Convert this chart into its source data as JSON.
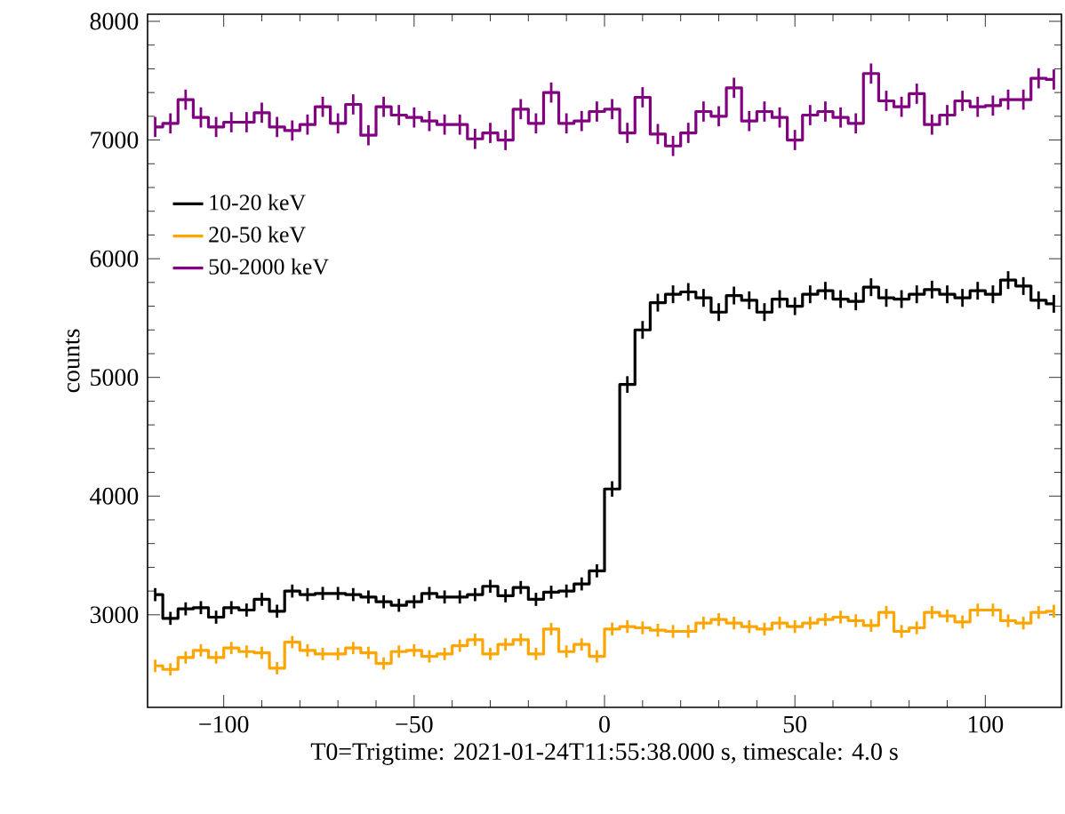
{
  "chart_data": {
    "type": "step",
    "xlabel": "T0=Trigtime: 2021-01-24T11:55:38.000 s, timescale: 4.0 s",
    "ylabel": "counts",
    "legend": "left",
    "xlim": [
      -120,
      120
    ],
    "ylim": [
      2220,
      8060
    ],
    "xticks": [
      {
        "value": -100,
        "label": "−100"
      },
      {
        "value": -50,
        "label": "−50"
      },
      0,
      50,
      100
    ],
    "yticks": [
      3000,
      4000,
      5000,
      6000,
      7000,
      8000
    ],
    "x": [
      -118,
      -114,
      -110,
      -106,
      -102,
      -98,
      -94,
      -90,
      -86,
      -82,
      -78,
      -74,
      -70,
      -66,
      -62,
      -58,
      -54,
      -50,
      -46,
      -42,
      -38,
      -34,
      -30,
      -26,
      -22,
      -18,
      -14,
      -10,
      -6,
      -2,
      2,
      6,
      10,
      14,
      18,
      22,
      26,
      30,
      34,
      38,
      42,
      46,
      50,
      54,
      58,
      62,
      66,
      70,
      74,
      78,
      82,
      86,
      90,
      94,
      98,
      102,
      106,
      110,
      114,
      118
    ],
    "series": [
      {
        "name": "10-20 keV",
        "color": "#000000",
        "values": [
          3170,
          2970,
          3050,
          3060,
          2980,
          3060,
          3040,
          3130,
          3030,
          3200,
          3170,
          3180,
          3180,
          3170,
          3150,
          3110,
          3080,
          3110,
          3180,
          3150,
          3150,
          3170,
          3240,
          3160,
          3230,
          3130,
          3190,
          3200,
          3260,
          3370,
          4060,
          4940,
          5400,
          5630,
          5700,
          5720,
          5670,
          5550,
          5690,
          5650,
          5550,
          5660,
          5600,
          5700,
          5730,
          5660,
          5640,
          5760,
          5670,
          5660,
          5700,
          5740,
          5700,
          5670,
          5730,
          5700,
          5820,
          5770,
          5650,
          5620
        ],
        "errors": [
          55,
          55,
          55,
          55,
          55,
          55,
          55,
          55,
          55,
          55,
          55,
          55,
          55,
          55,
          55,
          55,
          55,
          55,
          55,
          55,
          55,
          55,
          55,
          55,
          55,
          55,
          55,
          55,
          55,
          55,
          65,
          70,
          75,
          75,
          75,
          75,
          75,
          75,
          75,
          75,
          75,
          75,
          75,
          75,
          75,
          75,
          75,
          75,
          75,
          75,
          75,
          75,
          75,
          75,
          75,
          75,
          75,
          75,
          75,
          75
        ]
      },
      {
        "name": "20-50 keV",
        "color": "#ffa500",
        "values": [
          2570,
          2540,
          2640,
          2700,
          2640,
          2720,
          2690,
          2680,
          2550,
          2770,
          2700,
          2670,
          2670,
          2720,
          2680,
          2590,
          2690,
          2700,
          2650,
          2670,
          2740,
          2790,
          2670,
          2750,
          2790,
          2670,
          2880,
          2690,
          2750,
          2650,
          2880,
          2900,
          2890,
          2870,
          2860,
          2860,
          2930,
          2960,
          2930,
          2900,
          2880,
          2930,
          2900,
          2930,
          2960,
          2980,
          2950,
          2910,
          3020,
          2860,
          2890,
          3020,
          2990,
          2940,
          3040,
          3040,
          2950,
          2930,
          3020,
          3030
        ],
        "errors": [
          52,
          52,
          52,
          52,
          52,
          52,
          52,
          52,
          52,
          52,
          52,
          52,
          52,
          52,
          52,
          52,
          52,
          52,
          52,
          52,
          52,
          52,
          52,
          52,
          52,
          52,
          52,
          52,
          52,
          52,
          54,
          54,
          54,
          54,
          54,
          54,
          54,
          54,
          54,
          54,
          54,
          54,
          54,
          54,
          54,
          54,
          54,
          54,
          54,
          54,
          54,
          54,
          54,
          54,
          54,
          54,
          54,
          54,
          54,
          54
        ]
      },
      {
        "name": "50-2000 keV",
        "color": "#800080",
        "values": [
          7110,
          7140,
          7340,
          7190,
          7110,
          7150,
          7150,
          7230,
          7110,
          7080,
          7130,
          7280,
          7140,
          7300,
          7040,
          7280,
          7210,
          7190,
          7160,
          7130,
          7130,
          7010,
          7060,
          7000,
          7260,
          7140,
          7400,
          7140,
          7160,
          7240,
          7260,
          7060,
          7360,
          7050,
          6950,
          7060,
          7240,
          7200,
          7440,
          7160,
          7240,
          7190,
          7000,
          7210,
          7240,
          7190,
          7140,
          7560,
          7330,
          7280,
          7390,
          7130,
          7210,
          7330,
          7280,
          7290,
          7340,
          7340,
          7520,
          7510
        ],
        "errors": [
          85,
          85,
          85,
          85,
          85,
          85,
          85,
          85,
          85,
          85,
          85,
          85,
          85,
          85,
          85,
          85,
          85,
          85,
          85,
          85,
          85,
          85,
          85,
          85,
          85,
          85,
          85,
          85,
          85,
          85,
          85,
          85,
          85,
          85,
          85,
          85,
          85,
          85,
          85,
          85,
          85,
          85,
          85,
          85,
          85,
          85,
          85,
          85,
          85,
          85,
          85,
          85,
          85,
          85,
          85,
          85,
          85,
          85,
          85,
          85
        ]
      }
    ]
  }
}
